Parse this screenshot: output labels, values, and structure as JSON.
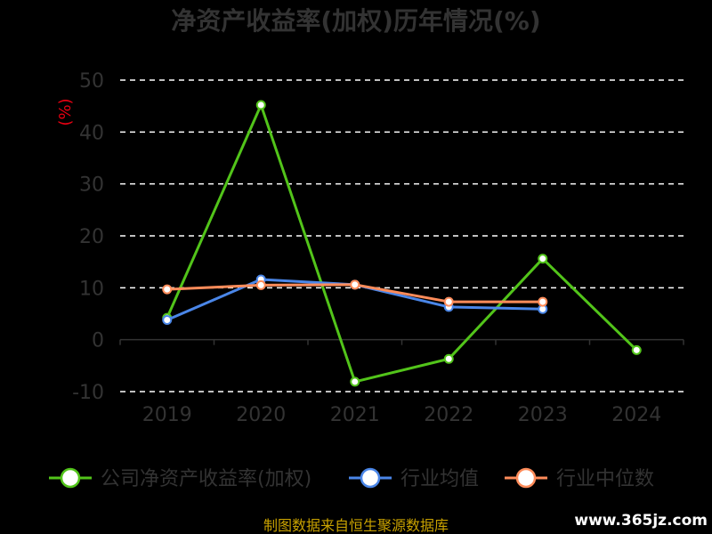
{
  "chart_data": {
    "type": "line",
    "title": "净资产收益率(加权)历年情况(%)",
    "ylabel": "(%)",
    "categories": [
      "2019",
      "2020",
      "2021",
      "2022",
      "2023",
      "2024"
    ],
    "yticks": [
      50,
      40,
      30,
      20,
      10,
      0,
      -10
    ],
    "ylim": [
      -10,
      50
    ],
    "grid": true,
    "legend_position": "bottom",
    "series": [
      {
        "name": "公司净资产收益率(加权)",
        "color": "#52c41a",
        "values": [
          4.2,
          45.2,
          -8.1,
          -3.7,
          15.6,
          -2.0
        ]
      },
      {
        "name": "行业均值",
        "color": "#4a86e8",
        "values": [
          3.8,
          11.6,
          10.6,
          6.3,
          5.9,
          null
        ]
      },
      {
        "name": "行业中位数",
        "color": "#ff8c5a",
        "values": [
          9.7,
          10.5,
          10.6,
          7.3,
          7.3,
          null
        ]
      }
    ]
  },
  "source": "制图数据来自恒生聚源数据库",
  "watermark": "www.365jz.com"
}
